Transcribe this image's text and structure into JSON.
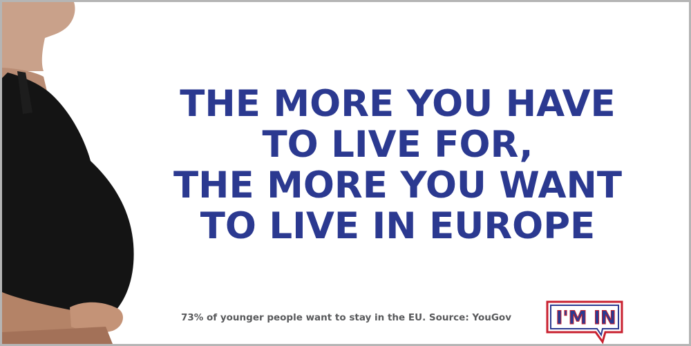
{
  "headline": {
    "line1": "THE MORE YOU HAVE",
    "line2": "TO LIVE FOR,",
    "line3": "THE MORE YOU WANT",
    "line4": "TO LIVE IN EUROPE"
  },
  "footnote": "73% of younger people want to stay in the EU. Source: YouGov",
  "badge": {
    "label": "I'M IN"
  },
  "colors": {
    "headline": "#2b3990",
    "footnote": "#58595b",
    "badge_red": "#c8202f",
    "badge_blue": "#2b3990"
  },
  "image": {
    "subject": "pregnant-woman-silhouette"
  }
}
